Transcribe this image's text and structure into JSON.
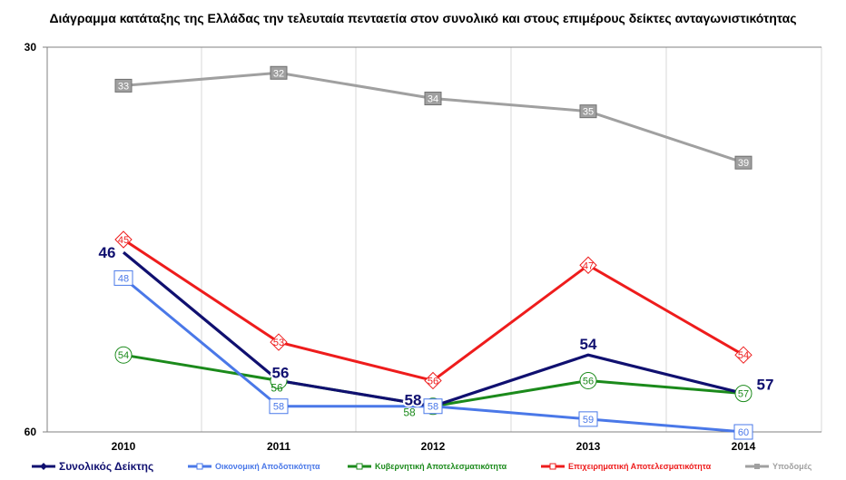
{
  "title": "Διάγραμμα κατάταξης της Ελλάδας την τελευταία πενταετία στον συνολικό και στους επιμέρους δείκτες ανταγωνιστικότητας",
  "chart_data": {
    "type": "line",
    "x": [
      "2010",
      "2011",
      "2012",
      "2013",
      "2014"
    ],
    "ylim": [
      30,
      60
    ],
    "y_inverted": true,
    "y_ticks": [
      30,
      60
    ],
    "grid": "vertical",
    "legend_position": "bottom",
    "series": [
      {
        "name": "Υποδομές",
        "values": [
          33,
          32,
          34,
          35,
          39
        ],
        "color": "#a0a0a0",
        "marker": "square-filled"
      },
      {
        "name": "Επιχειρηματική  Αποτελεσματικότητα",
        "values": [
          45,
          53,
          56,
          47,
          54
        ],
        "color": "#ee1c1c",
        "marker": "diamond"
      },
      {
        "name": "Κυβερνητική  Αποτελεσματικότητα",
        "values": [
          54,
          56,
          58,
          56,
          57
        ],
        "color": "#1b8a1b",
        "marker": "circle"
      },
      {
        "name": "Οικονομική  Αποδοτικότητα",
        "values": [
          48,
          58,
          58,
          59,
          60
        ],
        "color": "#4a78e8",
        "marker": "square-open"
      },
      {
        "name": "Συνολικός Δείκτης",
        "values": [
          46,
          56,
          58,
          54,
          57
        ],
        "color": "#101070",
        "marker": "diamond-filled"
      }
    ]
  }
}
